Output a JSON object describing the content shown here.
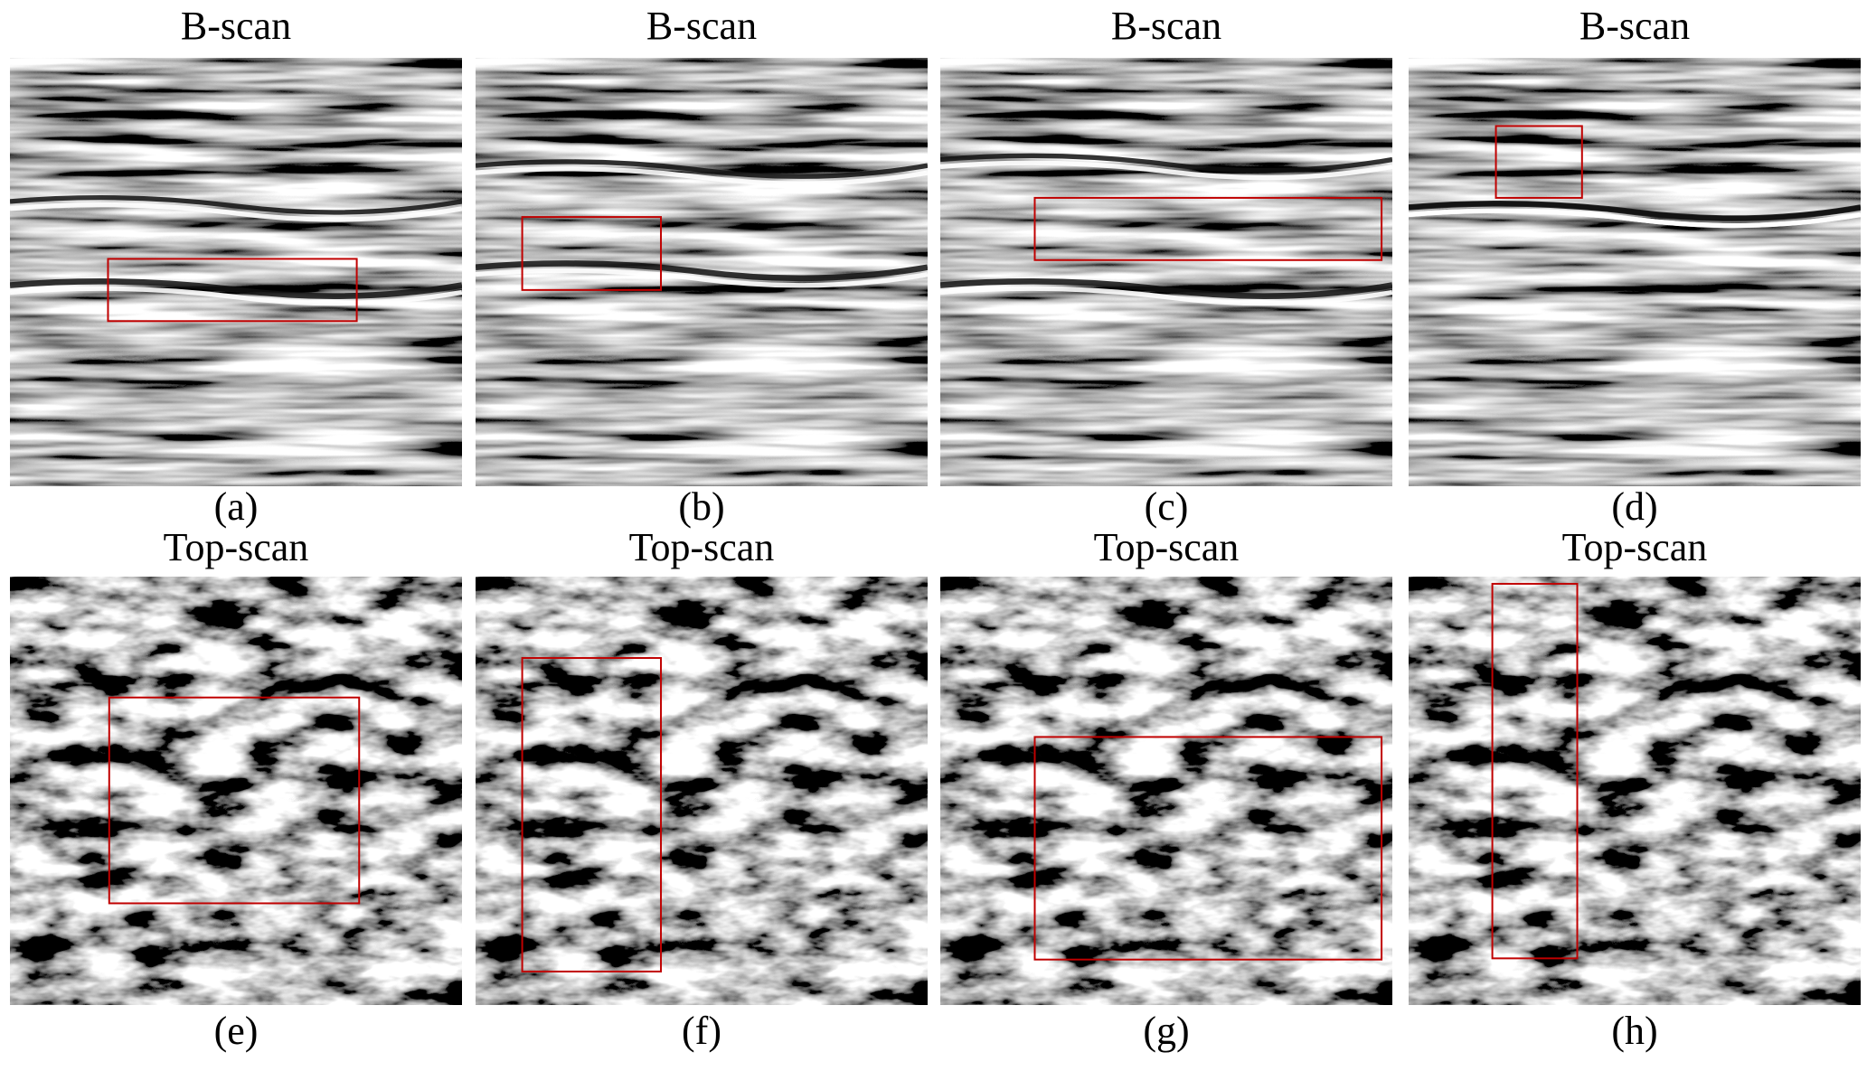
{
  "panels": [
    {
      "title": "B-scan",
      "caption": "(a)"
    },
    {
      "title": "B-scan",
      "caption": "(b)"
    },
    {
      "title": "B-scan",
      "caption": "(c)"
    },
    {
      "title": "B-scan",
      "caption": "(d)"
    },
    {
      "title": "Top-scan",
      "caption": "(e)"
    },
    {
      "title": "Top-scan",
      "caption": "(f)"
    },
    {
      "title": "Top-scan",
      "caption": "(g)"
    },
    {
      "title": "Top-scan",
      "caption": "(h)"
    }
  ]
}
